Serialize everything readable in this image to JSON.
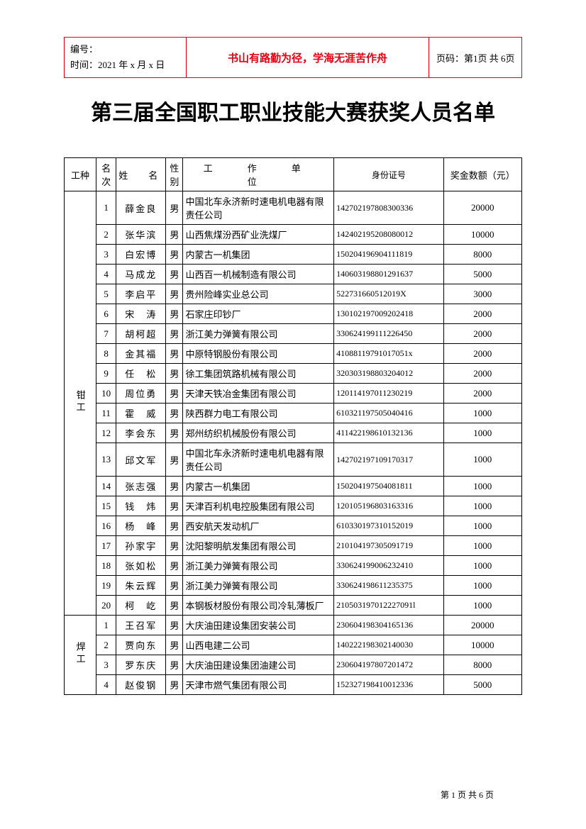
{
  "header": {
    "doc_number_label": "编号：",
    "time_label": "时间：",
    "time_value": "2021 年 x 月 x 日",
    "motto": "书山有路勤为径，学海无涯苦作舟",
    "page_label": "页码：",
    "page_value": "第1页 共 6页"
  },
  "title": "第三届全国职工职业技能大赛获奖人员名单",
  "columns": {
    "category": "工种",
    "rank": "名次",
    "name": "姓　名",
    "gender": "性别",
    "unit": "工　作　单　位",
    "id": "身份证号",
    "amount": "奖金数额（元）"
  },
  "categories": [
    {
      "name": "钳工",
      "rows": [
        {
          "rank": "1",
          "name": "薛金良",
          "gender": "男",
          "unit": "中国北车永济新时速电机电器有限责任公司",
          "id": "142702197808300336",
          "amount": "20000"
        },
        {
          "rank": "2",
          "name": "张华滨",
          "gender": "男",
          "unit": "山西焦煤汾西矿业洗煤厂",
          "id": "142402195208080012",
          "amount": "10000"
        },
        {
          "rank": "3",
          "name": "白宏博",
          "gender": "男",
          "unit": "内蒙古一机集团",
          "id": "150204196904111819",
          "amount": "8000"
        },
        {
          "rank": "4",
          "name": "马成龙",
          "gender": "男",
          "unit": "山西百一机械制造有限公司",
          "id": "140603198801291637",
          "amount": "5000"
        },
        {
          "rank": "5",
          "name": "李启平",
          "gender": "男",
          "unit": "贵州险峰实业总公司",
          "id": "522731660512019X",
          "amount": "3000"
        },
        {
          "rank": "6",
          "name": "宋　涛",
          "gender": "男",
          "unit": "石家庄印钞厂",
          "id": "130102197009202418",
          "amount": "2000"
        },
        {
          "rank": "7",
          "name": "胡柯超",
          "gender": "男",
          "unit": "浙江美力弹簧有限公司",
          "id": "330624199111226450",
          "amount": "2000"
        },
        {
          "rank": "8",
          "name": "金其福",
          "gender": "男",
          "unit": "中原特钢股份有限公司",
          "id": "41088119791017051x",
          "amount": "2000"
        },
        {
          "rank": "9",
          "name": "任　松",
          "gender": "男",
          "unit": "徐工集团筑路机械有限公司",
          "id": "320303198803204012",
          "amount": "2000"
        },
        {
          "rank": "10",
          "name": "周位勇",
          "gender": "男",
          "unit": "天津天铁冶金集团有限公司",
          "id": "120114197011230219",
          "amount": "2000"
        },
        {
          "rank": "11",
          "name": "霍　威",
          "gender": "男",
          "unit": "陕西群力电工有限公司",
          "id": "610321197505040416",
          "amount": "1000"
        },
        {
          "rank": "12",
          "name": "李会东",
          "gender": "男",
          "unit": "郑州纺织机械股份有限公司",
          "id": "411422198610132136",
          "amount": "1000"
        },
        {
          "rank": "13",
          "name": "邱文军",
          "gender": "男",
          "unit": "中国北车永济新时速电机电器有限责任公司",
          "id": "142702197109170317",
          "amount": "1000"
        },
        {
          "rank": "14",
          "name": "张志强",
          "gender": "男",
          "unit": "内蒙古一机集团",
          "id": "150204197504081811",
          "amount": "1000"
        },
        {
          "rank": "15",
          "name": "钱　炜",
          "gender": "男",
          "unit": "天津百利机电控股集团有限公司",
          "id": "120105196803163316",
          "amount": "1000"
        },
        {
          "rank": "16",
          "name": "杨　峰",
          "gender": "男",
          "unit": "西安航天发动机厂",
          "id": "610330197310152019",
          "amount": "1000"
        },
        {
          "rank": "17",
          "name": "孙家宇",
          "gender": "男",
          "unit": "沈阳黎明航发集团有限公司",
          "id": "210104197305091719",
          "amount": "1000"
        },
        {
          "rank": "18",
          "name": "张如松",
          "gender": "男",
          "unit": "浙江美力弹簧有限公司",
          "id": "330624199006232410",
          "amount": "1000"
        },
        {
          "rank": "19",
          "name": "朱云辉",
          "gender": "男",
          "unit": "浙江美力弹簧有限公司",
          "id": "330624198611235375",
          "amount": "1000"
        },
        {
          "rank": "20",
          "name": "柯　屹",
          "gender": "男",
          "unit": "本钢板材股份有限公司冷轧薄板厂",
          "id": "210503197012227091l",
          "amount": "1000"
        }
      ]
    },
    {
      "name": "焊工",
      "rows": [
        {
          "rank": "1",
          "name": "王召军",
          "gender": "男",
          "unit": "大庆油田建设集团安装公司",
          "id": "230604198304165136",
          "amount": "20000"
        },
        {
          "rank": "2",
          "name": "贾向东",
          "gender": "男",
          "unit": "山西电建二公司",
          "id": "140222198302140030",
          "amount": "10000"
        },
        {
          "rank": "3",
          "name": "罗东庆",
          "gender": "男",
          "unit": "大庆油田建设集团油建公司",
          "id": "230604197807201472",
          "amount": "8000"
        },
        {
          "rank": "4",
          "name": "赵俊钢",
          "gender": "男",
          "unit": "天津市燃气集团有限公司",
          "id": "152327198410012336",
          "amount": "5000"
        }
      ]
    }
  ],
  "footer": "第 1 页 共 6 页",
  "colors": {
    "accent": "#e60012",
    "border": "#000000",
    "text": "#000000",
    "background": "#ffffff"
  }
}
